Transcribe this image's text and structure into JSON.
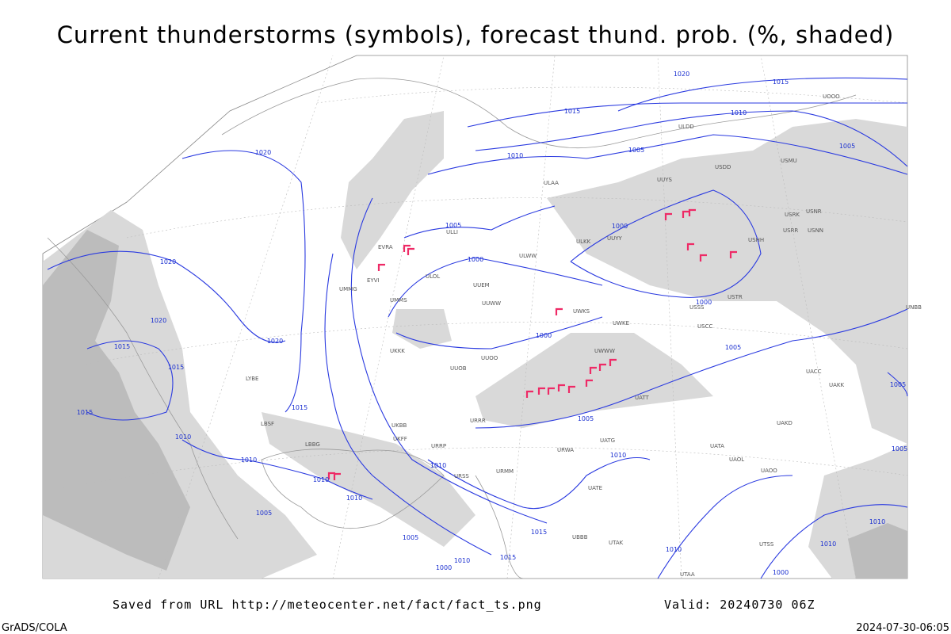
{
  "header": {
    "title": "Current thunderstorms (symbols), forecast thund. prob. (%, shaded)"
  },
  "map": {
    "isobar_labels": [
      1020,
      1015,
      1015,
      1010,
      1010,
      1005,
      1005,
      1020,
      1005,
      1000,
      1000,
      1000,
      1000,
      1020,
      1020,
      1020,
      1015,
      1015,
      1015,
      1015,
      1010,
      1010,
      1010,
      1010,
      1005,
      1005,
      1005,
      1010,
      1010,
      1005,
      1010,
      1000,
      1015,
      1015,
      1010,
      1005,
      1005,
      1010,
      1010,
      1000
    ],
    "stations": [
      "UUEM",
      "UUWW",
      "ULLI",
      "ULOL",
      "UMMS",
      "UKKK",
      "UUOB",
      "UUOO",
      "URRR",
      "ULWW",
      "ULKK",
      "UUYY",
      "UWKS",
      "UWKE",
      "UWWW",
      "USCC",
      "USSS",
      "USTR",
      "USHH",
      "USRR",
      "USNN",
      "USRK",
      "USNR",
      "UNBB",
      "UACC",
      "UAKK",
      "UAKD",
      "UATA",
      "UAOL",
      "UAOO",
      "URMM",
      "URWA",
      "UATG",
      "URSS",
      "ULAA",
      "ULDD",
      "UUYS",
      "USDD",
      "USMU",
      "UOOO",
      "EVRA",
      "EYVI",
      "UMMG",
      "UKBB",
      "LYBE",
      "LBSF",
      "LBBG",
      "UKFF",
      "URRP",
      "UBBB",
      "UTAK",
      "UTSS",
      "UTAA",
      "UATE",
      "UATT"
    ]
  },
  "footer": {
    "source": "Saved from URL http://meteocenter.net/fact/fact_ts.png",
    "valid": "Valid: 20240730 06Z",
    "software": "GrADS/COLA",
    "timestamp": "2024-07-30-06:05"
  }
}
